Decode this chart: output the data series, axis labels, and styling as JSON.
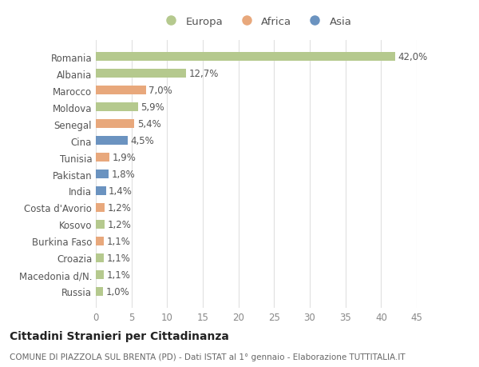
{
  "countries": [
    "Romania",
    "Albania",
    "Marocco",
    "Moldova",
    "Senegal",
    "Cina",
    "Tunisia",
    "Pakistan",
    "India",
    "Costa d'Avorio",
    "Kosovo",
    "Burkina Faso",
    "Croazia",
    "Macedonia d/N.",
    "Russia"
  ],
  "values": [
    42.0,
    12.7,
    7.0,
    5.9,
    5.4,
    4.5,
    1.9,
    1.8,
    1.4,
    1.2,
    1.2,
    1.1,
    1.1,
    1.1,
    1.0
  ],
  "labels": [
    "42,0%",
    "12,7%",
    "7,0%",
    "5,9%",
    "5,4%",
    "4,5%",
    "1,9%",
    "1,8%",
    "1,4%",
    "1,2%",
    "1,2%",
    "1,1%",
    "1,1%",
    "1,1%",
    "1,0%"
  ],
  "continents": [
    "Europa",
    "Europa",
    "Africa",
    "Europa",
    "Africa",
    "Asia",
    "Africa",
    "Asia",
    "Asia",
    "Africa",
    "Europa",
    "Africa",
    "Europa",
    "Europa",
    "Europa"
  ],
  "colors": {
    "Europa": "#b5c98e",
    "Africa": "#e8a87c",
    "Asia": "#6b93c0"
  },
  "title": "Cittadini Stranieri per Cittadinanza",
  "subtitle": "COMUNE DI PIAZZOLA SUL BRENTA (PD) - Dati ISTAT al 1° gennaio - Elaborazione TUTTITALIA.IT",
  "xlim": [
    0,
    45
  ],
  "xticks": [
    0,
    5,
    10,
    15,
    20,
    25,
    30,
    35,
    40,
    45
  ],
  "background_color": "#ffffff",
  "grid_color": "#e0e0e0",
  "bar_height": 0.55,
  "title_fontsize": 10,
  "subtitle_fontsize": 7.5,
  "tick_fontsize": 8.5,
  "label_fontsize": 8.5,
  "legend_fontsize": 9.5
}
